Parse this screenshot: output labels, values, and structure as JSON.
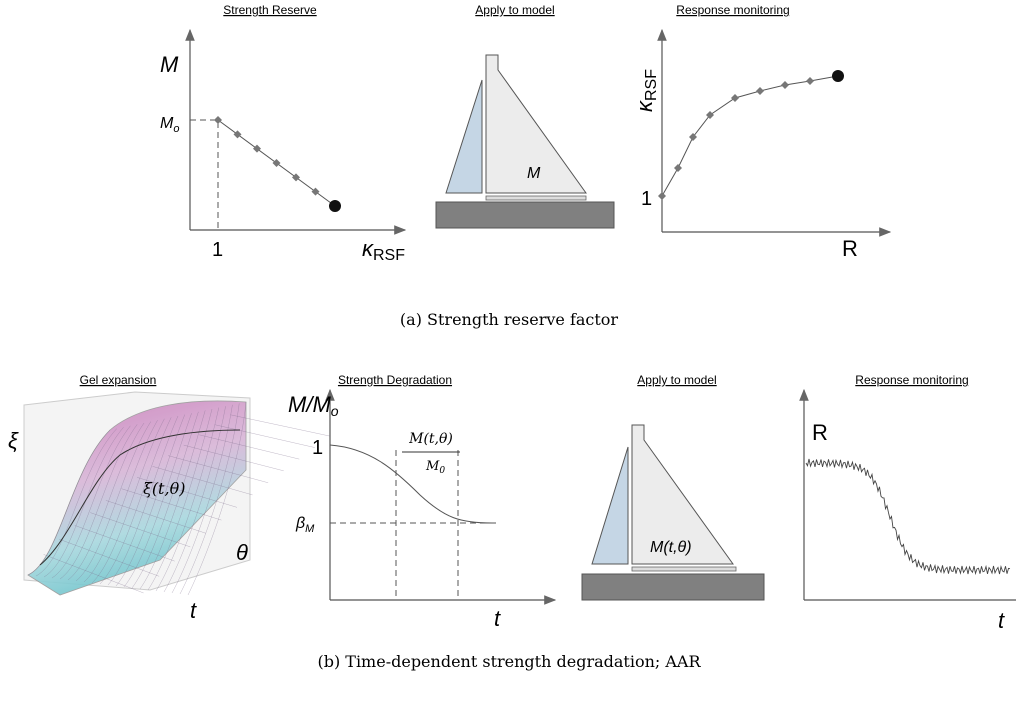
{
  "panel_a": {
    "caption": "(a) Strength reserve factor",
    "strength_reserve": {
      "title": "Strength Reserve",
      "y_label": "M",
      "y_mark": {
        "main": "M",
        "sub": "o"
      },
      "x_mark": "1",
      "x_label": {
        "main": "κ",
        "sub": "RSF"
      }
    },
    "apply_to_model": {
      "title": "Apply to model",
      "label": "M"
    },
    "response_monitoring": {
      "title": "Response monitoring",
      "y_label": {
        "main": "κ",
        "sub": "RSF"
      },
      "y_mark": "1",
      "x_label": "R"
    }
  },
  "panel_b": {
    "caption": "(b) Time-dependent strength degradation; AAR",
    "gel_expansion": {
      "title": "Gel expansion",
      "z_label": "ξ",
      "surface_label": "ξ(t,θ)",
      "theta_label": "θ",
      "t_label": "t"
    },
    "strength_degradation": {
      "title": "Strength Degradation",
      "y_label": {
        "main": "M/M",
        "sub": "o"
      },
      "y_mark": "1",
      "beta_label": {
        "main": "β",
        "sub": "M"
      },
      "fraction_top": "M(t,θ)",
      "fraction_bottom": {
        "main": "M",
        "sub": "0"
      },
      "x_label": "t"
    },
    "apply_to_model": {
      "title": "Apply to model",
      "label": "M(t,θ)"
    },
    "response_monitoring": {
      "title": "Response monitoring",
      "y_label": "R",
      "x_label": "t"
    }
  }
}
